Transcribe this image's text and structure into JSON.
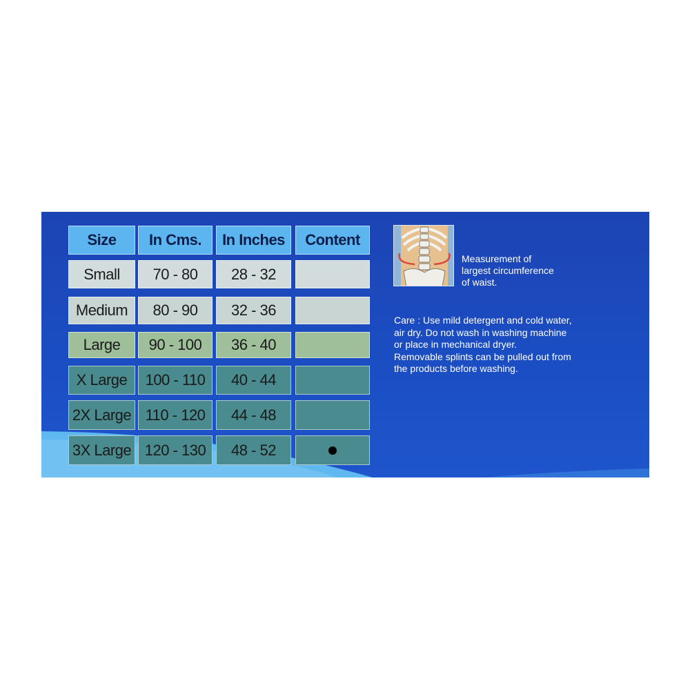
{
  "table": {
    "headers": [
      "Size",
      "In Cms.",
      "In Inches",
      "Content"
    ],
    "rows": [
      {
        "size": "Small",
        "cms": "70 - 80",
        "inches": "28 - 32",
        "content": false
      },
      {
        "size": "Medium",
        "cms": "80 - 90",
        "inches": "32 - 36",
        "content": false
      },
      {
        "size": "Large",
        "cms": "90 - 100",
        "inches": "36 - 40",
        "content": false
      },
      {
        "size": "X Large",
        "cms": "100 - 110",
        "inches": "40 - 44",
        "content": false
      },
      {
        "size": "2X Large",
        "cms": "110 - 120",
        "inches": "44 - 48",
        "content": false
      },
      {
        "size": "3X Large",
        "cms": "120 - 130",
        "inches": "48 - 52",
        "content": true
      }
    ]
  },
  "measurement": {
    "icon": "spine-waist-illustration",
    "lines": [
      "Measurement of",
      "largest circumference",
      "of waist."
    ]
  },
  "care": {
    "lines": [
      "Care : Use mild detergent and cold water,",
      "air dry. Do not  wash in washing machine",
      "or place in mechanical dryer.",
      "Removable splints can be pulled out from",
      "the products before washing."
    ]
  },
  "colors": {
    "panel": "#1c44b4",
    "header": "#5db5ef",
    "teal_rows": "#498b8e"
  }
}
